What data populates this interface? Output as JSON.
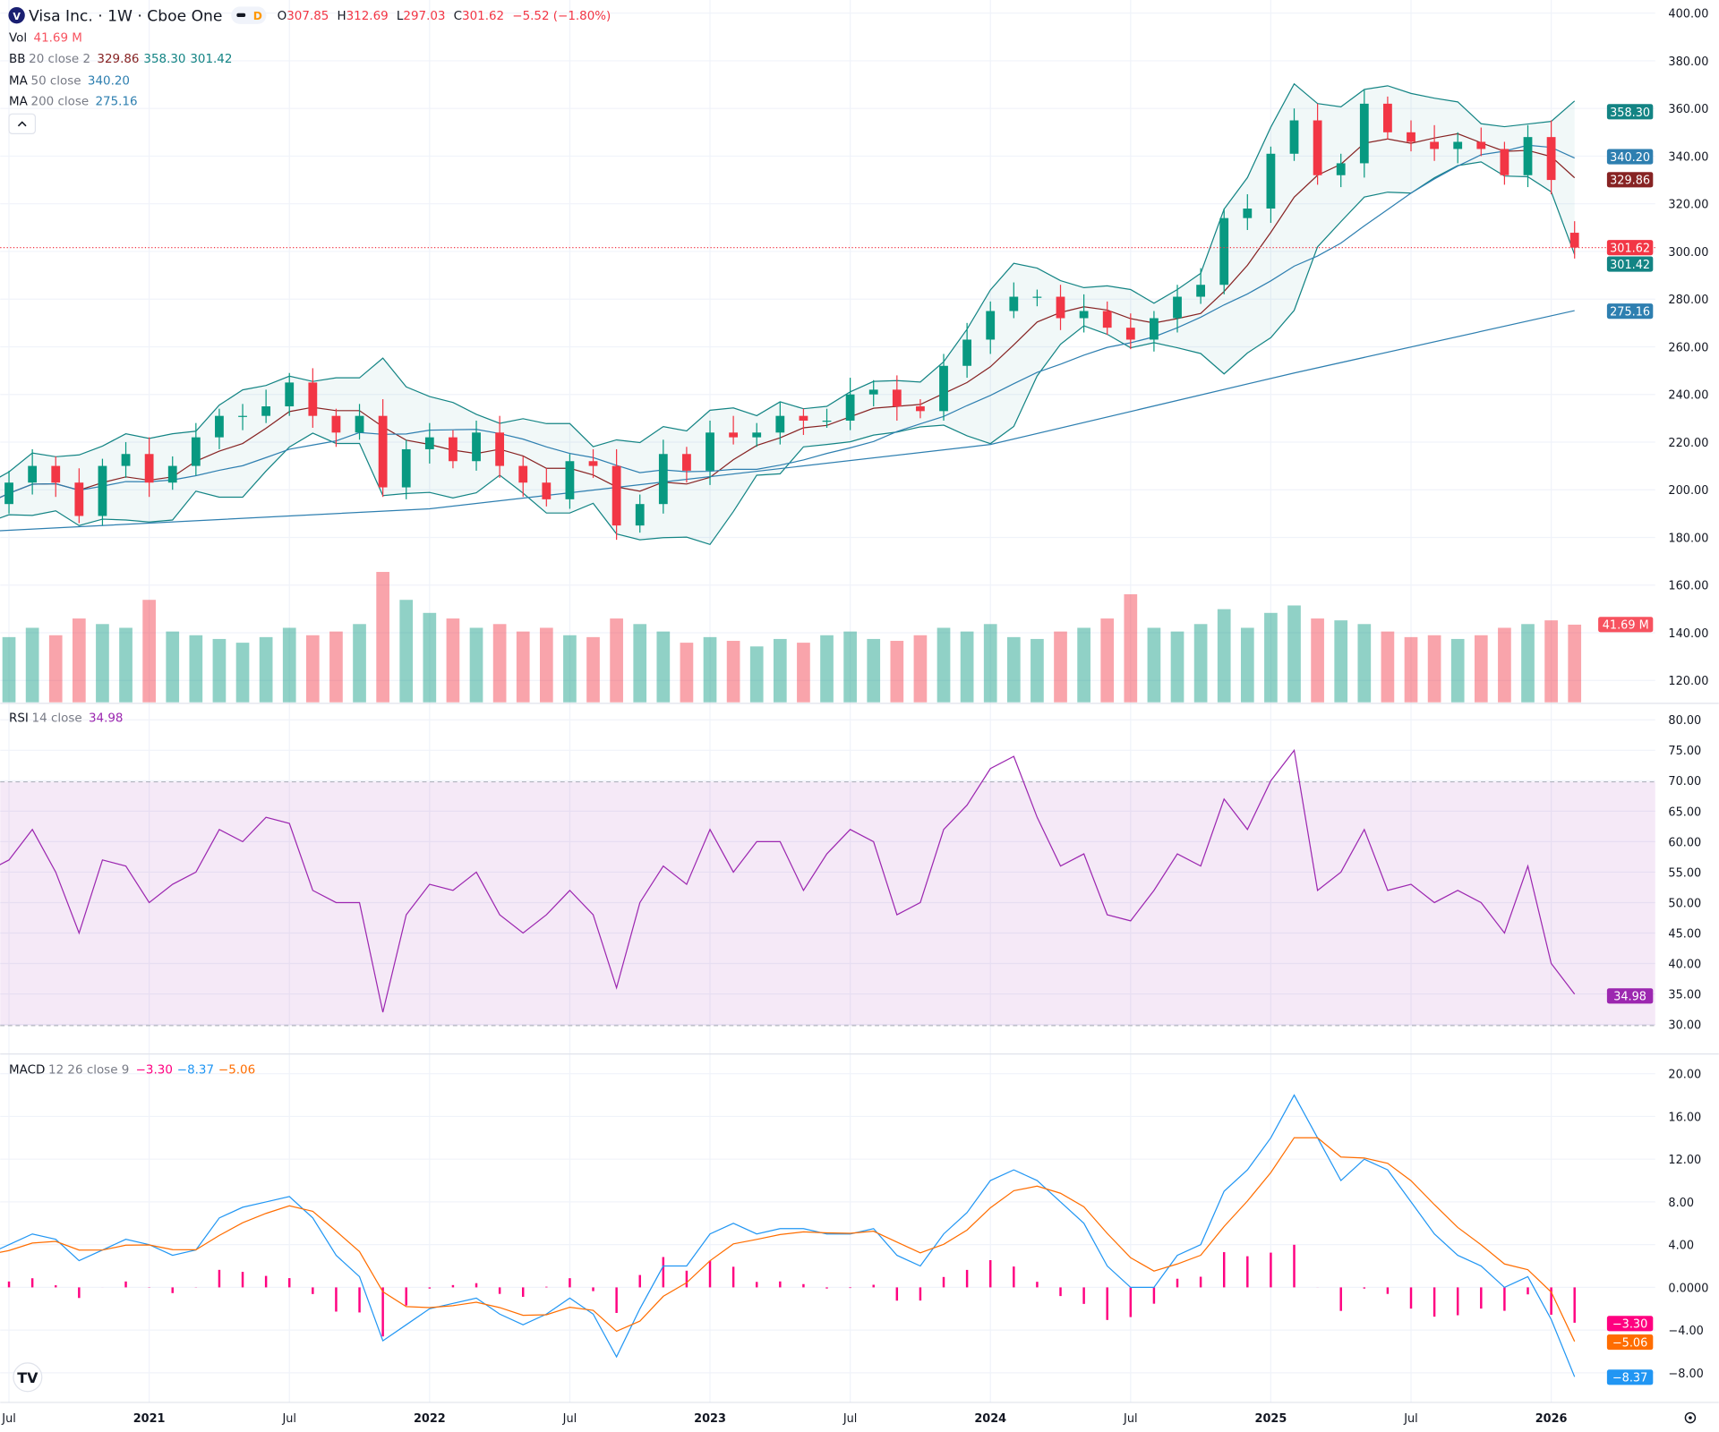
{
  "header": {
    "logo_letter": "V",
    "title": "Visa Inc. · 1W · Cboe One",
    "market_status": "D",
    "ohlc": {
      "o_label": "O",
      "o": "307.85",
      "h_label": "H",
      "h": "312.69",
      "l_label": "L",
      "l": "297.03",
      "c_label": "C",
      "c": "301.62",
      "change": "−5.52 (−1.80%)"
    },
    "vol": {
      "label": "Vol",
      "value": "41.69 M"
    },
    "bb": {
      "label": "BB",
      "params": "20 close 2",
      "basis": "329.86",
      "upper": "358.30",
      "lower": "301.42"
    },
    "ma50": {
      "label": "MA",
      "params": "50 close",
      "value": "340.20"
    },
    "ma200": {
      "label": "MA",
      "params": "200 close",
      "value": "275.16"
    },
    "collapse_icon": "chevron-up-icon"
  },
  "rsi_legend": {
    "label": "RSI",
    "params": "14 close",
    "value": "34.98"
  },
  "macd_legend": {
    "label": "MACD",
    "params": "12 26 close 9",
    "hist": "−3.30",
    "macd": "−8.37",
    "signal": "−5.06"
  },
  "price_axis": [
    "400.00",
    "380.00",
    "360.00",
    "340.00",
    "320.00",
    "300.00",
    "280.00",
    "260.00",
    "240.00",
    "220.00",
    "200.00",
    "180.00",
    "160.00",
    "140.00",
    "120.00"
  ],
  "rsi_axis": [
    "80.00",
    "75.00",
    "70.00",
    "65.00",
    "60.00",
    "55.00",
    "50.00",
    "45.00",
    "40.00",
    "35.00",
    "30.00"
  ],
  "macd_axis": [
    "20.00",
    "16.00",
    "12.00",
    "8.00",
    "4.00",
    "0.0000",
    "−4.00",
    "−8.00"
  ],
  "time_axis": [
    "Jul",
    "2021",
    "Jul",
    "2022",
    "Jul",
    "2023",
    "Jul",
    "2024",
    "Jul",
    "2025",
    "Jul",
    "2026"
  ],
  "price_tags": {
    "upper": "358.30",
    "ma50": "340.20",
    "basis": "329.86",
    "last": "301.62",
    "lower": "301.42",
    "ma200": "275.16",
    "volume": "41.69 M"
  },
  "rsi_tag": "34.98",
  "macd_tags": {
    "hist": "−3.30",
    "signal": "−5.06",
    "macd": "−8.37"
  },
  "colors": {
    "up": "#089981",
    "down": "#f23645",
    "bb_basis": "#872323",
    "bb_band": "#138484",
    "ma50": "#2962ff",
    "ma200": "#2e7fb0",
    "rsi": "#9c27b0",
    "macd": "#2196f3",
    "signal": "#ff6d00",
    "hist": "#ff0080"
  },
  "chart_data": [
    {
      "type": "candlestick",
      "title": "Visa Inc. · 1W · Cboe One",
      "dates": [
        "2020-06",
        "2020-07",
        "2020-08",
        "2020-09",
        "2020-10",
        "2020-11",
        "2020-12",
        "2021-01",
        "2021-02",
        "2021-03",
        "2021-04",
        "2021-05",
        "2021-06",
        "2021-07",
        "2021-08",
        "2021-09",
        "2021-10",
        "2021-11",
        "2021-12",
        "2022-01",
        "2022-02",
        "2022-03",
        "2022-04",
        "2022-05",
        "2022-06",
        "2022-07",
        "2022-08",
        "2022-09",
        "2022-10",
        "2022-11",
        "2022-12",
        "2023-01",
        "2023-02",
        "2023-03",
        "2023-04",
        "2023-05",
        "2023-06",
        "2023-07",
        "2023-08",
        "2023-09",
        "2023-10",
        "2023-11",
        "2023-12",
        "2024-01",
        "2024-02",
        "2024-03",
        "2024-04",
        "2024-05",
        "2024-06",
        "2024-07",
        "2024-08",
        "2024-09",
        "2024-10",
        "2024-11",
        "2024-12",
        "2025-01",
        "2025-02",
        "2025-03",
        "2025-04",
        "2025-05",
        "2025-06",
        "2025-07",
        "2025-08",
        "2025-09",
        "2025-10",
        "2025-11",
        "2025-12",
        "2026-01",
        "2026-02"
      ],
      "close": [
        194,
        203,
        210,
        203,
        189,
        210,
        215,
        203,
        210,
        222,
        231,
        231,
        235,
        245,
        231,
        224,
        231,
        201,
        217,
        222,
        212,
        224,
        210,
        203,
        196,
        212,
        210,
        185,
        194,
        215,
        208,
        224,
        222,
        224,
        231,
        229,
        229,
        240,
        242,
        235,
        233,
        252,
        263,
        275,
        281,
        281,
        272,
        275,
        268,
        263,
        272,
        281,
        286,
        314,
        318,
        341,
        355,
        332,
        337,
        362,
        350,
        346,
        343,
        346,
        343,
        332,
        348,
        330,
        301.62
      ],
      "volume_millions": [
        38,
        35,
        40,
        36,
        45,
        42,
        40,
        55,
        38,
        36,
        34,
        32,
        35,
        40,
        36,
        38,
        42,
        70,
        55,
        48,
        45,
        40,
        42,
        38,
        40,
        36,
        35,
        45,
        42,
        38,
        32,
        35,
        33,
        30,
        34,
        32,
        36,
        38,
        34,
        33,
        36,
        40,
        38,
        42,
        35,
        34,
        38,
        40,
        45,
        58,
        40,
        38,
        42,
        50,
        40,
        48,
        52,
        45,
        44,
        42,
        38,
        35,
        36,
        34,
        36,
        40,
        42,
        44,
        41.69
      ],
      "ma200": [
        [
          "2020-06",
          182.5
        ],
        [
          "2022-01",
          192
        ],
        [
          "2024-01",
          219
        ],
        [
          "2025-02",
          249
        ],
        [
          "2026-02",
          275.16
        ]
      ],
      "last": {
        "open": 307.85,
        "high": 312.69,
        "low": 297.03,
        "close": 301.62
      },
      "ylim": [
        115,
        402
      ]
    },
    {
      "type": "line",
      "title": "RSI 14 close",
      "values": [
        55,
        57,
        62,
        55,
        45,
        57,
        56,
        50,
        53,
        55,
        62,
        60,
        64,
        63,
        52,
        50,
        50,
        32,
        48,
        53,
        52,
        55,
        48,
        45,
        48,
        52,
        48,
        36,
        50,
        56,
        53,
        62,
        55,
        60,
        60,
        52,
        58,
        62,
        60,
        48,
        50,
        62,
        66,
        72,
        74,
        64,
        56,
        58,
        48,
        47,
        52,
        58,
        56,
        67,
        62,
        70,
        75,
        52,
        55,
        62,
        52,
        53,
        50,
        52,
        50,
        45,
        56,
        40,
        34.98
      ],
      "bands": [
        30,
        70
      ],
      "ylim": [
        30,
        80
      ]
    },
    {
      "type": "line",
      "title": "MACD 12 26 close 9",
      "macd": [
        3,
        4,
        5,
        4.5,
        2.5,
        3.5,
        4.5,
        4,
        3,
        3.5,
        6.5,
        7.5,
        8,
        8.5,
        6.5,
        3,
        1,
        -5,
        -3.5,
        -2,
        -1.5,
        -1,
        -2.5,
        -3.5,
        -2.5,
        -1,
        -2.5,
        -6.5,
        -2,
        2,
        2,
        5,
        6,
        5,
        5.5,
        5.5,
        5,
        5,
        5.5,
        3,
        2,
        5,
        7,
        10,
        11,
        10,
        8,
        6,
        2,
        0,
        0,
        3,
        4,
        9,
        11,
        14,
        18,
        14,
        10,
        12,
        11,
        8,
        5,
        3,
        2,
        0,
        1,
        -3,
        -8.37
      ],
      "last": {
        "histogram": -3.3,
        "macd": -8.37,
        "signal": -5.06
      },
      "ylim": [
        -9,
        20
      ]
    }
  ]
}
